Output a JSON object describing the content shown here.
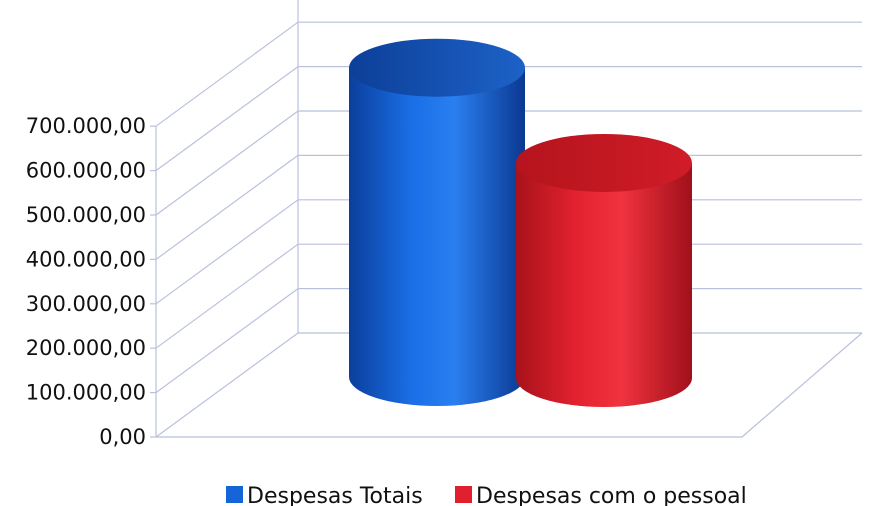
{
  "chart_data": {
    "type": "bar",
    "title": "",
    "xlabel": "",
    "ylabel": "",
    "categories": [
      ""
    ],
    "ylim": [
      0,
      700000
    ],
    "yticks": [
      0,
      100000,
      200000,
      300000,
      400000,
      500000,
      600000,
      700000
    ],
    "ytick_labels": [
      "0,00",
      "100.000,00",
      "200.000,00",
      "300.000,00",
      "400.000,00",
      "500.000,00",
      "600.000,00",
      "700.000,00"
    ],
    "grid": true,
    "legend_position": "bottom",
    "series": [
      {
        "name": "Despesas Totais",
        "values": [
          745000
        ],
        "color": "#1565d8"
      },
      {
        "name": "Despesas com o pessoal",
        "values": [
          518000
        ],
        "color": "#e0202c"
      }
    ]
  }
}
